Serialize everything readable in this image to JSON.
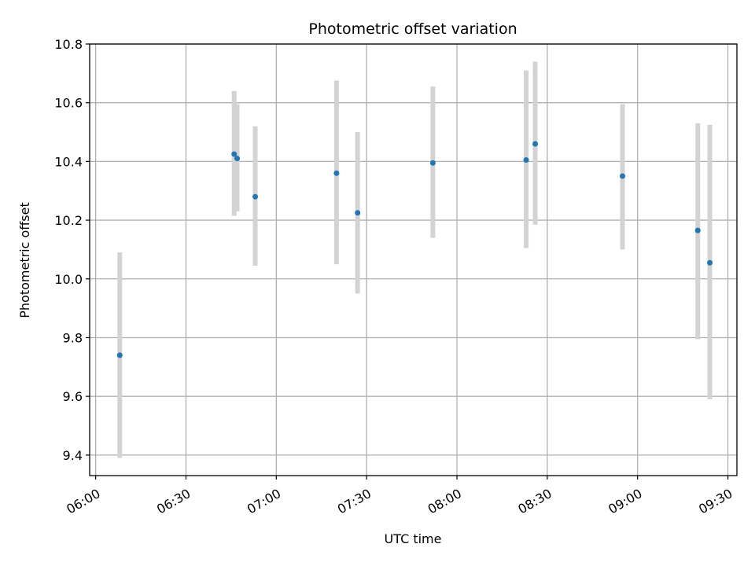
{
  "chart_data": {
    "type": "scatter",
    "title": "Photometric offset variation",
    "xlabel": "UTC time",
    "ylabel": "Photometric offset",
    "x_tick_labels": [
      "06:00",
      "06:30",
      "07:00",
      "07:30",
      "08:00",
      "08:30",
      "09:00",
      "09:30"
    ],
    "y_tick_labels": [
      "9.4",
      "9.6",
      "9.8",
      "10.0",
      "10.2",
      "10.4",
      "10.6",
      "10.8"
    ],
    "x_ticks": [
      "06:00",
      "06:30",
      "07:00",
      "07:30",
      "08:00",
      "08:30",
      "09:00",
      "09:30"
    ],
    "y_ticks": [
      9.4,
      9.6,
      9.8,
      10.0,
      10.2,
      10.4,
      10.6,
      10.8
    ],
    "xlim": [
      "05:58",
      "09:33"
    ],
    "ylim": [
      9.33,
      10.8
    ],
    "grid": true,
    "point_color": "#1f77b4",
    "errorbar_color": "#d3d3d3",
    "points": [
      {
        "x": "06:08",
        "y": 9.74,
        "ylow": 9.39,
        "yhigh": 10.09
      },
      {
        "x": "06:46",
        "y": 10.425,
        "ylow": 10.215,
        "yhigh": 10.64
      },
      {
        "x": "06:47",
        "y": 10.41,
        "ylow": 10.23,
        "yhigh": 10.595
      },
      {
        "x": "06:53",
        "y": 10.28,
        "ylow": 10.045,
        "yhigh": 10.52
      },
      {
        "x": "07:20",
        "y": 10.36,
        "ylow": 10.05,
        "yhigh": 10.675
      },
      {
        "x": "07:27",
        "y": 10.225,
        "ylow": 9.95,
        "yhigh": 10.5
      },
      {
        "x": "07:52",
        "y": 10.395,
        "ylow": 10.14,
        "yhigh": 10.655
      },
      {
        "x": "08:23",
        "y": 10.405,
        "ylow": 10.105,
        "yhigh": 10.71
      },
      {
        "x": "08:26",
        "y": 10.46,
        "ylow": 10.185,
        "yhigh": 10.74
      },
      {
        "x": "08:55",
        "y": 10.35,
        "ylow": 10.1,
        "yhigh": 10.595
      },
      {
        "x": "09:20",
        "y": 10.165,
        "ylow": 9.795,
        "yhigh": 10.53
      },
      {
        "x": "09:24",
        "y": 10.055,
        "ylow": 9.59,
        "yhigh": 10.525
      }
    ]
  }
}
